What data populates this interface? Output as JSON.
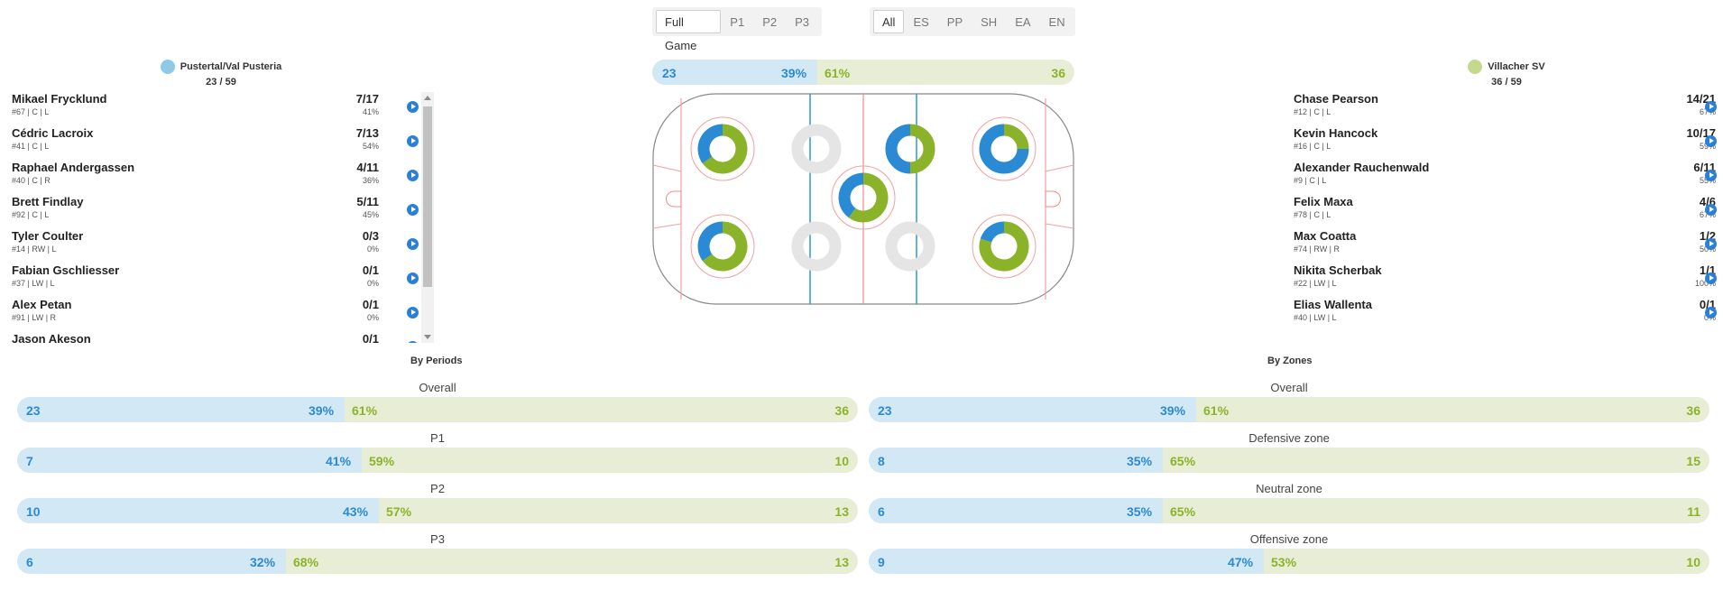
{
  "filters": {
    "period_tabs": [
      "Full Game",
      "P1",
      "P2",
      "P3"
    ],
    "period_active": "Full Game",
    "situation_tabs": [
      "All",
      "ES",
      "PP",
      "SH",
      "EA",
      "EN"
    ],
    "situation_active": "All"
  },
  "home_team": {
    "name": "Pustertal/Val Pusteria",
    "score": "23 / 59",
    "color": "#8ecae6",
    "players": [
      {
        "name": "Mikael Frycklund",
        "info": "#67 | C | L",
        "stat": "7/17",
        "pct": "41%"
      },
      {
        "name": "Cédric Lacroix",
        "info": "#41 | C | L",
        "stat": "7/13",
        "pct": "54%"
      },
      {
        "name": "Raphael Andergassen",
        "info": "#40 | C | R",
        "stat": "4/11",
        "pct": "36%"
      },
      {
        "name": "Brett Findlay",
        "info": "#92 | C | L",
        "stat": "5/11",
        "pct": "45%"
      },
      {
        "name": "Tyler Coulter",
        "info": "#14 | RW | L",
        "stat": "0/3",
        "pct": "0%"
      },
      {
        "name": "Fabian Gschliesser",
        "info": "#37 | LW | L",
        "stat": "0/1",
        "pct": "0%"
      },
      {
        "name": "Alex Petan",
        "info": "#91 | LW | R",
        "stat": "0/1",
        "pct": "0%"
      },
      {
        "name": "Jason Akeson",
        "info": "",
        "stat": "0/1",
        "pct": ""
      }
    ]
  },
  "away_team": {
    "name": "Villacher SV",
    "score": "36 / 59",
    "color": "#c5d98a",
    "players": [
      {
        "name": "Chase Pearson",
        "info": "#12 | C | L",
        "stat": "14/21",
        "pct": "67%"
      },
      {
        "name": "Kevin Hancock",
        "info": "#16 | C | L",
        "stat": "10/17",
        "pct": "59%"
      },
      {
        "name": "Alexander Rauchenwald",
        "info": "#9 | C | L",
        "stat": "6/11",
        "pct": "55%"
      },
      {
        "name": "Felix Maxa",
        "info": "#78 | C | L",
        "stat": "4/6",
        "pct": "67%"
      },
      {
        "name": "Max Coatta",
        "info": "#74 | RW | R",
        "stat": "1/2",
        "pct": "50%"
      },
      {
        "name": "Nikita Scherbak",
        "info": "#22 | LW | L",
        "stat": "1/1",
        "pct": "100%"
      },
      {
        "name": "Elias Wallenta",
        "info": "#40 | LW | L",
        "stat": "0/1",
        "pct": "0%"
      }
    ]
  },
  "rink_total": {
    "left": "23",
    "left_pct": "39%",
    "right_pct": "61%",
    "right": "36",
    "left_share": 0.39
  },
  "faceoff_dots": [
    {
      "spot": "left-top",
      "home_share": 0.35
    },
    {
      "spot": "left-bottom",
      "home_share": 0.35
    },
    {
      "spot": "neutral-left-top",
      "home_share": null
    },
    {
      "spot": "neutral-left-bottom",
      "home_share": null
    },
    {
      "spot": "center",
      "home_share": 0.4
    },
    {
      "spot": "neutral-right-top",
      "home_share": 0.5
    },
    {
      "spot": "neutral-right-bottom",
      "home_share": null
    },
    {
      "spot": "right-top",
      "home_share": 0.75
    },
    {
      "spot": "right-bottom",
      "home_share": 0.2
    }
  ],
  "by_periods": {
    "title": "By Periods",
    "rows": [
      {
        "label": "Overall",
        "left": "23",
        "left_pct": "39%",
        "right_pct": "61%",
        "right": "36",
        "share": 0.39
      },
      {
        "label": "P1",
        "left": "7",
        "left_pct": "41%",
        "right_pct": "59%",
        "right": "10",
        "share": 0.41
      },
      {
        "label": "P2",
        "left": "10",
        "left_pct": "43%",
        "right_pct": "57%",
        "right": "13",
        "share": 0.43
      },
      {
        "label": "P3",
        "left": "6",
        "left_pct": "32%",
        "right_pct": "68%",
        "right": "13",
        "share": 0.32
      }
    ]
  },
  "by_zones": {
    "title": "By Zones",
    "rows": [
      {
        "label": "Overall",
        "left": "23",
        "left_pct": "39%",
        "right_pct": "61%",
        "right": "36",
        "share": 0.39
      },
      {
        "label": "Defensive zone",
        "left": "8",
        "left_pct": "35%",
        "right_pct": "65%",
        "right": "15",
        "share": 0.35
      },
      {
        "label": "Neutral zone",
        "left": "6",
        "left_pct": "35%",
        "right_pct": "65%",
        "right": "11",
        "share": 0.35
      },
      {
        "label": "Offensive zone",
        "left": "9",
        "left_pct": "47%",
        "right_pct": "53%",
        "right": "10",
        "share": 0.47
      }
    ]
  },
  "colors": {
    "home": "#2b8ad4",
    "away": "#8ab32a",
    "home_light": "#d3e8f5",
    "away_light": "#e8eed6"
  }
}
